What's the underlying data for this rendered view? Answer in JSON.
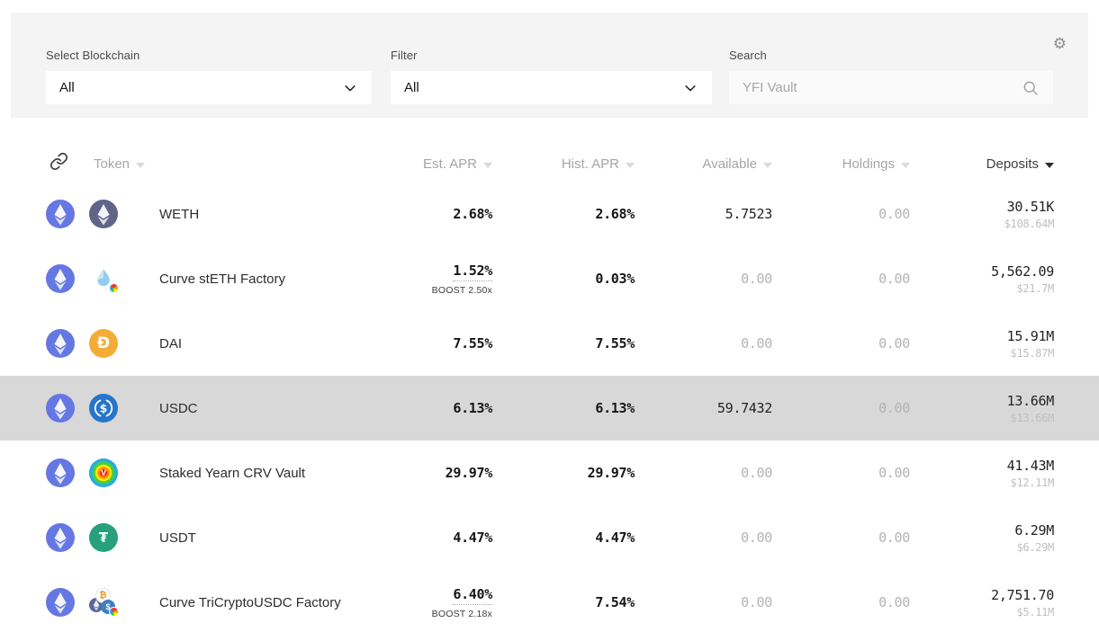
{
  "filters": {
    "blockchain": {
      "label": "Select Blockchain",
      "value": "All"
    },
    "filter": {
      "label": "Filter",
      "value": "All"
    },
    "search": {
      "label": "Search",
      "placeholder": "YFI Vault"
    }
  },
  "settings_icon": "gear-icon",
  "table": {
    "columns": {
      "token": "Token",
      "est_apr": "Est. APR",
      "hist_apr": "Hist. APR",
      "available": "Available",
      "holdings": "Holdings",
      "deposits": "Deposits"
    },
    "sort": {
      "column": "Deposits",
      "direction": "desc"
    },
    "rows": [
      {
        "name": "WETH",
        "chain_icon": "ethereum-chain-icon",
        "token_icon": "weth-icon",
        "est_apr": "2.68%",
        "boost": "",
        "hist_apr": "2.68%",
        "available": "5.7523",
        "available_muted": false,
        "holdings": "0.00",
        "holdings_muted": true,
        "deposits": "30.51K",
        "deposits_usd": "$108.64M",
        "highlighted": false
      },
      {
        "name": "Curve stETH Factory",
        "chain_icon": "ethereum-chain-icon",
        "token_icon": "steth-curve-icon",
        "est_apr": "1.52%",
        "boost": "BOOST 2.50x",
        "hist_apr": "0.03%",
        "available": "0.00",
        "available_muted": true,
        "holdings": "0.00",
        "holdings_muted": true,
        "deposits": "5,562.09",
        "deposits_usd": "$21.7M",
        "highlighted": false
      },
      {
        "name": "DAI",
        "chain_icon": "ethereum-chain-icon",
        "token_icon": "dai-icon",
        "est_apr": "7.55%",
        "boost": "",
        "hist_apr": "7.55%",
        "available": "0.00",
        "available_muted": true,
        "holdings": "0.00",
        "holdings_muted": true,
        "deposits": "15.91M",
        "deposits_usd": "$15.87M",
        "highlighted": false
      },
      {
        "name": "USDC",
        "chain_icon": "ethereum-chain-icon",
        "token_icon": "usdc-icon",
        "est_apr": "6.13%",
        "boost": "",
        "hist_apr": "6.13%",
        "available": "59.7432",
        "available_muted": false,
        "holdings": "0.00",
        "holdings_muted": true,
        "deposits": "13.66M",
        "deposits_usd": "$13.66M",
        "highlighted": true
      },
      {
        "name": "Staked Yearn CRV Vault",
        "chain_icon": "ethereum-chain-icon",
        "token_icon": "ycrv-icon",
        "est_apr": "29.97%",
        "boost": "",
        "hist_apr": "29.97%",
        "available": "0.00",
        "available_muted": true,
        "holdings": "0.00",
        "holdings_muted": true,
        "deposits": "41.43M",
        "deposits_usd": "$12.11M",
        "highlighted": false
      },
      {
        "name": "USDT",
        "chain_icon": "ethereum-chain-icon",
        "token_icon": "usdt-icon",
        "est_apr": "4.47%",
        "boost": "",
        "hist_apr": "4.47%",
        "available": "0.00",
        "available_muted": true,
        "holdings": "0.00",
        "holdings_muted": true,
        "deposits": "6.29M",
        "deposits_usd": "$6.29M",
        "highlighted": false
      },
      {
        "name": "Curve TriCryptoUSDC Factory",
        "chain_icon": "ethereum-chain-icon",
        "token_icon": "tricrypto-icon",
        "est_apr": "6.40%",
        "boost": "BOOST 2.18x",
        "hist_apr": "7.54%",
        "available": "0.00",
        "available_muted": true,
        "holdings": "0.00",
        "holdings_muted": true,
        "deposits": "2,751.70",
        "deposits_usd": "$5.11M",
        "highlighted": false
      }
    ]
  },
  "colors": {
    "panel_bg": "#f4f4f4",
    "row_highlight": "#d8d8d8",
    "chain_blue": "#6577e3",
    "weth": "#5f6489",
    "dai": "#f5ac37",
    "usdc": "#2775ca",
    "usdt": "#26a17b",
    "text_dark": "#161616",
    "text_muted": "#b3b3b3"
  }
}
